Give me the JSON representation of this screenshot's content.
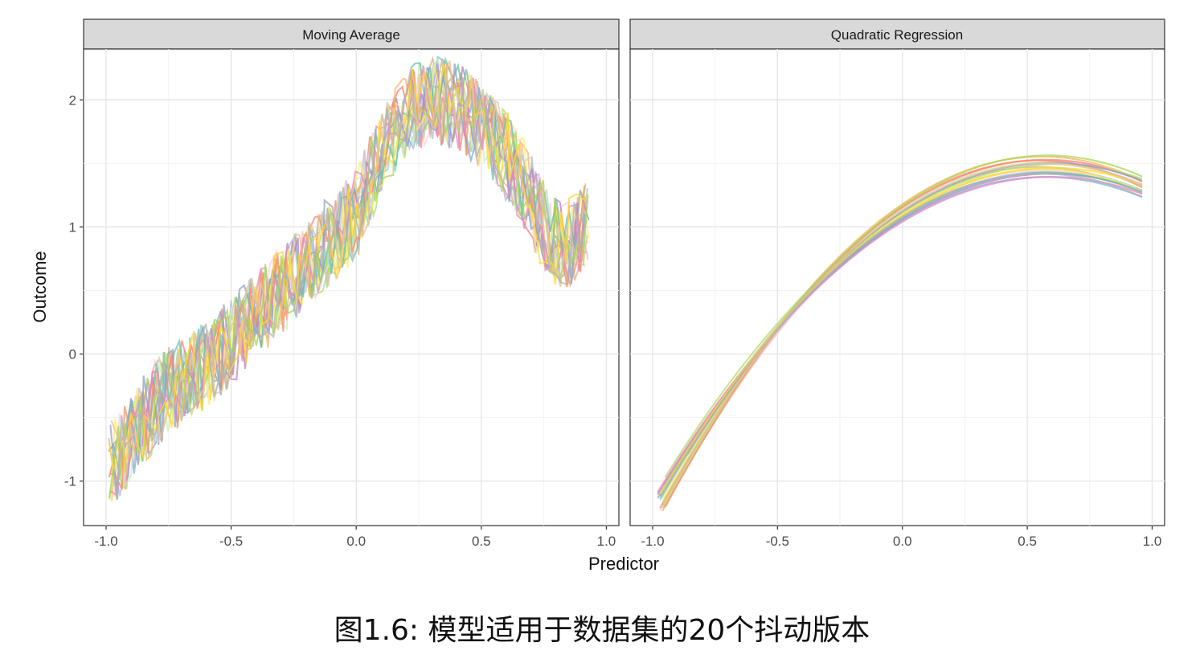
{
  "figure": {
    "caption": "图1.6: 模型适用于数据集的20个抖动版本",
    "xlabel": "Predictor",
    "ylabel": "Outcome"
  },
  "chart_data": [
    {
      "type": "line",
      "panel_title": "Moving Average",
      "xlim": [
        -1.09,
        1.05
      ],
      "ylim": [
        -1.35,
        2.4
      ],
      "x_ticks": [
        -1.0,
        -0.5,
        0.0,
        0.5,
        1.0
      ],
      "x_tick_labels": [
        "-1.0",
        "-0.5",
        "0.0",
        "0.5",
        "1.0"
      ],
      "y_ticks": [
        -1,
        0,
        1,
        2
      ],
      "y_tick_labels": [
        "-1",
        "0",
        "1",
        "2"
      ],
      "grid": true,
      "n_series": 20,
      "x": [
        -0.98,
        -0.96,
        -0.94,
        -0.92,
        -0.9,
        -0.88,
        -0.86,
        -0.84,
        -0.82,
        -0.8,
        -0.78,
        -0.76,
        -0.74,
        -0.72,
        -0.7,
        -0.68,
        -0.66,
        -0.64,
        -0.62,
        -0.6,
        -0.58,
        -0.56,
        -0.54,
        -0.52,
        -0.5,
        -0.48,
        -0.46,
        -0.44,
        -0.42,
        -0.4,
        -0.38,
        -0.36,
        -0.34,
        -0.32,
        -0.3,
        -0.28,
        -0.26,
        -0.24,
        -0.22,
        -0.2,
        -0.18,
        -0.16,
        -0.14,
        -0.12,
        -0.1,
        -0.08,
        -0.06,
        -0.04,
        -0.02,
        0.0,
        0.02,
        0.04,
        0.06,
        0.08,
        0.1,
        0.12,
        0.14,
        0.16,
        0.18,
        0.2,
        0.22,
        0.24,
        0.26,
        0.28,
        0.3,
        0.32,
        0.34,
        0.36,
        0.38,
        0.4,
        0.42,
        0.44,
        0.46,
        0.48,
        0.5,
        0.52,
        0.54,
        0.56,
        0.58,
        0.6,
        0.62,
        0.64,
        0.66,
        0.68,
        0.7,
        0.72,
        0.74,
        0.76,
        0.78,
        0.8,
        0.82,
        0.84,
        0.86,
        0.88,
        0.9,
        0.92
      ],
      "center_curve": [
        -0.85,
        -0.82,
        -0.78,
        -0.72,
        -0.66,
        -0.6,
        -0.55,
        -0.5,
        -0.45,
        -0.4,
        -0.36,
        -0.32,
        -0.28,
        -0.25,
        -0.22,
        -0.19,
        -0.16,
        -0.13,
        -0.1,
        -0.08,
        -0.05,
        -0.02,
        0.02,
        0.06,
        0.1,
        0.14,
        0.18,
        0.22,
        0.26,
        0.3,
        0.34,
        0.38,
        0.42,
        0.46,
        0.5,
        0.54,
        0.58,
        0.62,
        0.66,
        0.7,
        0.74,
        0.78,
        0.82,
        0.86,
        0.9,
        0.94,
        0.98,
        1.02,
        1.06,
        1.1,
        1.2,
        1.3,
        1.4,
        1.48,
        1.56,
        1.64,
        1.72,
        1.78,
        1.84,
        1.88,
        1.92,
        1.95,
        1.97,
        1.98,
        1.99,
        1.99,
        1.98,
        1.97,
        1.96,
        1.95,
        1.93,
        1.9,
        1.86,
        1.82,
        1.78,
        1.74,
        1.7,
        1.65,
        1.6,
        1.55,
        1.5,
        1.44,
        1.38,
        1.3,
        1.22,
        1.14,
        1.06,
        0.98,
        0.92,
        0.88,
        0.86,
        0.86,
        0.88,
        0.92,
        0.96,
        1.0
      ],
      "jitter_amplitude": 0.35
    },
    {
      "type": "line",
      "panel_title": "Quadratic Regression",
      "xlim": [
        -1.09,
        1.05
      ],
      "ylim": [
        -1.35,
        2.4
      ],
      "x_ticks": [
        -1.0,
        -0.5,
        0.0,
        0.5,
        1.0
      ],
      "x_tick_labels": [
        "-1.0",
        "-0.5",
        "0.0",
        "0.5",
        "1.0"
      ],
      "y_ticks": [
        -1,
        0,
        1,
        2
      ],
      "y_tick_labels": [
        "-1",
        "0",
        "1",
        "2"
      ],
      "grid": true,
      "x_range": [
        -0.97,
        0.96
      ],
      "series_coefficients": [
        {
          "a": 1.1,
          "b": 1.25,
          "c": -1.1,
          "xmin": -0.97
        },
        {
          "a": 1.12,
          "b": 1.3,
          "c": -1.2,
          "xmin": -0.96
        },
        {
          "a": 1.08,
          "b": 1.22,
          "c": -1.05,
          "xmin": -0.95
        },
        {
          "a": 1.15,
          "b": 1.32,
          "c": -1.15,
          "xmin": -0.97
        },
        {
          "a": 1.05,
          "b": 1.2,
          "c": -1.05,
          "xmin": -0.98
        },
        {
          "a": 1.18,
          "b": 1.34,
          "c": -1.2,
          "xmin": -0.96
        },
        {
          "a": 1.11,
          "b": 1.24,
          "c": -1.0,
          "xmin": -0.95
        },
        {
          "a": 1.09,
          "b": 1.28,
          "c": -1.15,
          "xmin": -0.97
        },
        {
          "a": 1.13,
          "b": 1.27,
          "c": -1.1,
          "xmin": -0.86
        },
        {
          "a": 1.06,
          "b": 1.21,
          "c": -1.02,
          "xmin": -0.98
        },
        {
          "a": 1.14,
          "b": 1.31,
          "c": -1.18,
          "xmin": -0.84
        },
        {
          "a": 1.1,
          "b": 1.26,
          "c": -1.12,
          "xmin": -0.96
        },
        {
          "a": 1.07,
          "b": 1.23,
          "c": -1.06,
          "xmin": -0.97
        },
        {
          "a": 1.16,
          "b": 1.33,
          "c": -1.22,
          "xmin": -0.95
        },
        {
          "a": 1.12,
          "b": 1.29,
          "c": -1.08,
          "xmin": -0.86
        },
        {
          "a": 1.04,
          "b": 1.19,
          "c": -1.0,
          "xmin": -0.98
        },
        {
          "a": 1.17,
          "b": 1.35,
          "c": -1.16,
          "xmin": -0.96
        },
        {
          "a": 1.09,
          "b": 1.25,
          "c": -1.04,
          "xmin": -0.97
        },
        {
          "a": 1.13,
          "b": 1.3,
          "c": -1.14,
          "xmin": -0.96
        },
        {
          "a": 1.08,
          "b": 1.22,
          "c": -1.1,
          "xmin": -0.97
        }
      ]
    }
  ],
  "palette": [
    "#8dd3c7",
    "#d4b483",
    "#bebada",
    "#fb8072",
    "#80b1d3",
    "#fdb462",
    "#b3de69",
    "#fccde5",
    "#c9c9c9",
    "#bc80bd",
    "#ccebc5",
    "#ffed6f",
    "#66c2a5",
    "#fc8d62",
    "#8da0cb",
    "#e78ac3",
    "#a6d854",
    "#ffd92f",
    "#e5c494",
    "#b3b3b3"
  ]
}
